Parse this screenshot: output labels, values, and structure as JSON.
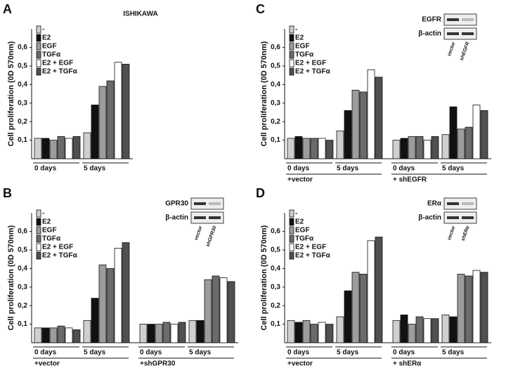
{
  "chart_data": [
    {
      "type": "bar",
      "panel": "A",
      "title": "ISHIKAWA",
      "y_label": "Cell proliferation (0D 570nm)",
      "categories": [
        "0 days",
        "5 days"
      ],
      "ylim": [
        0,
        0.7
      ],
      "yticks": [
        {
          "value": 0.1,
          "label": "0,1"
        },
        {
          "value": 0.2,
          "label": "0,2"
        },
        {
          "value": 0.3,
          "label": "0,3"
        },
        {
          "value": 0.4,
          "label": "0,4"
        },
        {
          "value": 0.5,
          "label": "0,5"
        },
        {
          "value": 0.6,
          "label": "0,6"
        }
      ],
      "series": [
        {
          "name": "-",
          "color": "#cfcfcf",
          "values": [
            0.11,
            0.14
          ]
        },
        {
          "name": "E2",
          "color": "#111111",
          "values": [
            0.11,
            0.29
          ]
        },
        {
          "name": "EGF",
          "color": "#9c9c9c",
          "values": [
            0.1,
            0.39
          ]
        },
        {
          "name": "TGFα",
          "color": "#6b6b6b",
          "values": [
            0.12,
            0.42
          ]
        },
        {
          "name": "E2 + EGF",
          "color": "#ffffff",
          "values": [
            0.11,
            0.52
          ]
        },
        {
          "name": "E2 + TGFα",
          "color": "#505050",
          "values": [
            0.12,
            0.51
          ]
        }
      ]
    },
    {
      "type": "bar",
      "panel": "B",
      "y_label": "Cell proliferation (0D 570nm)",
      "categories": [
        "0 days",
        "5 days",
        "0 days",
        "5 days"
      ],
      "groups": [
        "+vector",
        "+shGPR30"
      ],
      "inset": {
        "protein": "GPR30",
        "control": "β-actin",
        "lanes": [
          "vector",
          "shGPR30"
        ]
      },
      "ylim": [
        0,
        0.7
      ],
      "yticks": [
        {
          "value": 0.1,
          "label": "0,1"
        },
        {
          "value": 0.2,
          "label": "0,2"
        },
        {
          "value": 0.3,
          "label": "0,3"
        },
        {
          "value": 0.4,
          "label": "0,4"
        },
        {
          "value": 0.5,
          "label": "0,5"
        },
        {
          "value": 0.6,
          "label": "0,6"
        }
      ],
      "series": [
        {
          "name": "-",
          "color": "#cfcfcf",
          "values": [
            0.08,
            0.12,
            0.1,
            0.12
          ]
        },
        {
          "name": "E2",
          "color": "#111111",
          "values": [
            0.08,
            0.24,
            0.1,
            0.12
          ]
        },
        {
          "name": "EGF",
          "color": "#9c9c9c",
          "values": [
            0.08,
            0.42,
            0.1,
            0.34
          ]
        },
        {
          "name": "TGFα",
          "color": "#6b6b6b",
          "values": [
            0.09,
            0.4,
            0.11,
            0.36
          ]
        },
        {
          "name": "E2 + EGF",
          "color": "#ffffff",
          "values": [
            0.08,
            0.51,
            0.1,
            0.35
          ]
        },
        {
          "name": "E2 + TGFα",
          "color": "#505050",
          "values": [
            0.07,
            0.54,
            0.11,
            0.33
          ]
        }
      ]
    },
    {
      "type": "bar",
      "panel": "C",
      "y_label": "Cell proliferation (0D 570nm)",
      "categories": [
        "0 days",
        "5 days",
        "0 days",
        "5 days"
      ],
      "groups": [
        "+vector",
        "+ shEGFR"
      ],
      "inset": {
        "protein": "EGFR",
        "control": "β-actin",
        "lanes": [
          "vector",
          "shEGFR"
        ]
      },
      "ylim": [
        0,
        0.7
      ],
      "yticks": [
        {
          "value": 0.1,
          "label": "0,1"
        },
        {
          "value": 0.2,
          "label": "0,2"
        },
        {
          "value": 0.3,
          "label": "0,3"
        },
        {
          "value": 0.4,
          "label": "0,4"
        },
        {
          "value": 0.5,
          "label": "0,5"
        },
        {
          "value": 0.6,
          "label": "0,6"
        }
      ],
      "series": [
        {
          "name": "-",
          "color": "#cfcfcf",
          "values": [
            0.11,
            0.15,
            0.1,
            0.13
          ]
        },
        {
          "name": "E2",
          "color": "#111111",
          "values": [
            0.12,
            0.26,
            0.11,
            0.28
          ]
        },
        {
          "name": "EGF",
          "color": "#9c9c9c",
          "values": [
            0.11,
            0.37,
            0.12,
            0.16
          ]
        },
        {
          "name": "TGFα",
          "color": "#6b6b6b",
          "values": [
            0.11,
            0.36,
            0.12,
            0.17
          ]
        },
        {
          "name": "E2 + EGF",
          "color": "#ffffff",
          "values": [
            0.11,
            0.48,
            0.1,
            0.29
          ]
        },
        {
          "name": "E2 + TGFα",
          "color": "#505050",
          "values": [
            0.1,
            0.44,
            0.12,
            0.26
          ]
        }
      ]
    },
    {
      "type": "bar",
      "panel": "D",
      "y_label": "Cell proliferation (0D 570nm)",
      "categories": [
        "0 days",
        "5 days",
        "0 days",
        "5 days"
      ],
      "groups": [
        "+vector",
        "+ shERα"
      ],
      "inset": {
        "protein": "ERα",
        "control": "β-actin",
        "lanes": [
          "vector",
          "shERα"
        ]
      },
      "ylim": [
        0,
        0.7
      ],
      "yticks": [
        {
          "value": 0.1,
          "label": "0,1"
        },
        {
          "value": 0.2,
          "label": "0,2"
        },
        {
          "value": 0.3,
          "label": "0,3"
        },
        {
          "value": 0.4,
          "label": "0,4"
        },
        {
          "value": 0.5,
          "label": "0,5"
        },
        {
          "value": 0.6,
          "label": "0,6"
        }
      ],
      "series": [
        {
          "name": "-",
          "color": "#cfcfcf",
          "values": [
            0.12,
            0.14,
            0.12,
            0.15
          ]
        },
        {
          "name": "E2",
          "color": "#111111",
          "values": [
            0.11,
            0.28,
            0.15,
            0.14
          ]
        },
        {
          "name": "EGF",
          "color": "#9c9c9c",
          "values": [
            0.12,
            0.38,
            0.1,
            0.37
          ]
        },
        {
          "name": "TGFα",
          "color": "#6b6b6b",
          "values": [
            0.1,
            0.37,
            0.14,
            0.36
          ]
        },
        {
          "name": "E2 + EGF",
          "color": "#ffffff",
          "values": [
            0.11,
            0.55,
            0.13,
            0.39
          ]
        },
        {
          "name": "E2 + TGFα",
          "color": "#505050",
          "values": [
            0.1,
            0.57,
            0.13,
            0.38
          ]
        }
      ]
    }
  ]
}
